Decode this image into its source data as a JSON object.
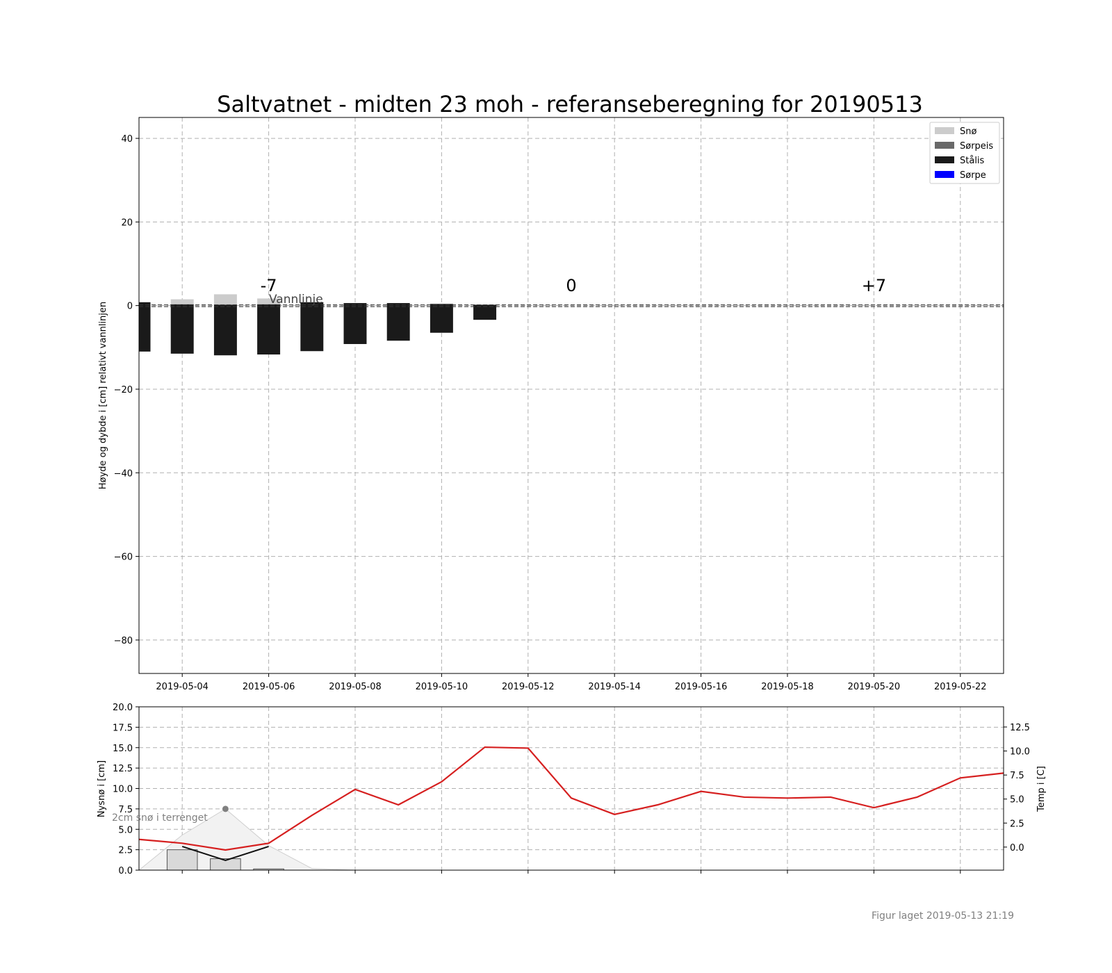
{
  "chart_data": [
    {
      "type": "bar",
      "title": "Saltvatnet - midten 23 moh - referanseberegning for 20190513",
      "ylabel": "Høyde og dybde i [cm] relativt vannlinjen",
      "ylim": [
        -88,
        45
      ],
      "yticks": [
        40,
        20,
        0,
        -20,
        -40,
        -60,
        -80
      ],
      "ytick_labels": [
        "40",
        "20",
        "0",
        "−20",
        "−40",
        "−60",
        "−80"
      ],
      "xlim": [
        "2019-05-03",
        "2019-05-23"
      ],
      "xtick_labels": [
        "2019-05-04",
        "2019-05-06",
        "2019-05-08",
        "2019-05-10",
        "2019-05-12",
        "2019-05-14",
        "2019-05-16",
        "2019-05-18",
        "2019-05-20",
        "2019-05-22"
      ],
      "xtick_dates": [
        "2019-05-04",
        "2019-05-06",
        "2019-05-08",
        "2019-05-10",
        "2019-05-12",
        "2019-05-14",
        "2019-05-16",
        "2019-05-18",
        "2019-05-20",
        "2019-05-22"
      ],
      "grid": true,
      "legend": {
        "placement": "top-right",
        "entries": [
          {
            "label": "Snø",
            "color": "#cccccc"
          },
          {
            "label": "Sørpeis",
            "color": "#696969"
          },
          {
            "label": "Stålis",
            "color": "#1a1a1a"
          },
          {
            "label": "Sørpe",
            "color": "#0000ff"
          }
        ]
      },
      "waterline_label": "Vannlinje",
      "period_labels": [
        {
          "text": "-7",
          "date": "2019-05-06"
        },
        {
          "text": "0",
          "date": "2019-05-13"
        },
        {
          "text": "+7",
          "date": "2019-05-20"
        }
      ],
      "dates": [
        "2019-05-03",
        "2019-05-04",
        "2019-05-05",
        "2019-05-06",
        "2019-05-07",
        "2019-05-08",
        "2019-05-09",
        "2019-05-10",
        "2019-05-11"
      ],
      "series": [
        {
          "name": "Snø",
          "color": "#cccccc",
          "values": [
            0,
            1.2,
            2.5,
            1.4,
            0,
            0,
            0,
            0,
            0
          ]
        },
        {
          "name": "Stålis",
          "color": "#1a1a1a",
          "top": [
            0.8,
            0.3,
            0.2,
            0.3,
            0.8,
            0.6,
            0.6,
            0.4,
            0.2
          ],
          "bottom": [
            -11.0,
            -11.5,
            -11.9,
            -11.7,
            -10.9,
            -9.2,
            -8.4,
            -6.5,
            -3.4
          ]
        }
      ]
    },
    {
      "type": "bar",
      "ylabel": "Nysnø i [cm]",
      "ylabel_right": "Temp i [C]",
      "ylim": [
        0,
        20
      ],
      "yticks": [
        0,
        2.5,
        5,
        7.5,
        10,
        12.5,
        15,
        17.5,
        20
      ],
      "ytick_labels": [
        "0.0",
        "2.5",
        "5.0",
        "7.5",
        "10.0",
        "12.5",
        "15.0",
        "17.5",
        "20.0"
      ],
      "ylim_right": [
        -2.4,
        14.6
      ],
      "yticks_right": [
        0,
        2.5,
        5,
        7.5,
        10,
        12.5
      ],
      "ytick_labels_right": [
        "0.0",
        "2.5",
        "5.0",
        "7.5",
        "10.0",
        "12.5"
      ],
      "annotation": "2cm snø i terrenget",
      "new_snow": {
        "dates": [
          "2019-05-04",
          "2019-05-05",
          "2019-05-06"
        ],
        "values": [
          2.5,
          1.4,
          0.15
        ]
      },
      "snow_depth": {
        "dates": [
          "2019-05-03",
          "2019-05-04",
          "2019-05-05",
          "2019-05-06",
          "2019-05-07",
          "2019-05-08"
        ],
        "values": [
          0,
          4.3,
          7.5,
          3.0,
          0.2,
          0
        ]
      },
      "black_line": {
        "dates": [
          "2019-05-04",
          "2019-05-05",
          "2019-05-06"
        ],
        "values": [
          2.9,
          1.2,
          2.9
        ]
      },
      "marker": {
        "date": "2019-05-05",
        "value": 7.5
      },
      "temperature": {
        "color": "#d62020",
        "dates": [
          "2019-05-03",
          "2019-05-04",
          "2019-05-05",
          "2019-05-06",
          "2019-05-07",
          "2019-05-08",
          "2019-05-09",
          "2019-05-10",
          "2019-05-11",
          "2019-05-12",
          "2019-05-13",
          "2019-05-14",
          "2019-05-15",
          "2019-05-16",
          "2019-05-17",
          "2019-05-18",
          "2019-05-19",
          "2019-05-20",
          "2019-05-21",
          "2019-05-22",
          "2019-05-23"
        ],
        "values": [
          0.8,
          0.4,
          -0.3,
          0.4,
          3.3,
          6.0,
          4.4,
          6.8,
          10.4,
          10.3,
          5.1,
          3.4,
          4.4,
          5.8,
          5.2,
          5.1,
          5.2,
          4.1,
          5.2,
          7.2,
          7.7
        ]
      },
      "grid": true
    }
  ],
  "footer": "Figur laget 2019-05-13 21:19"
}
